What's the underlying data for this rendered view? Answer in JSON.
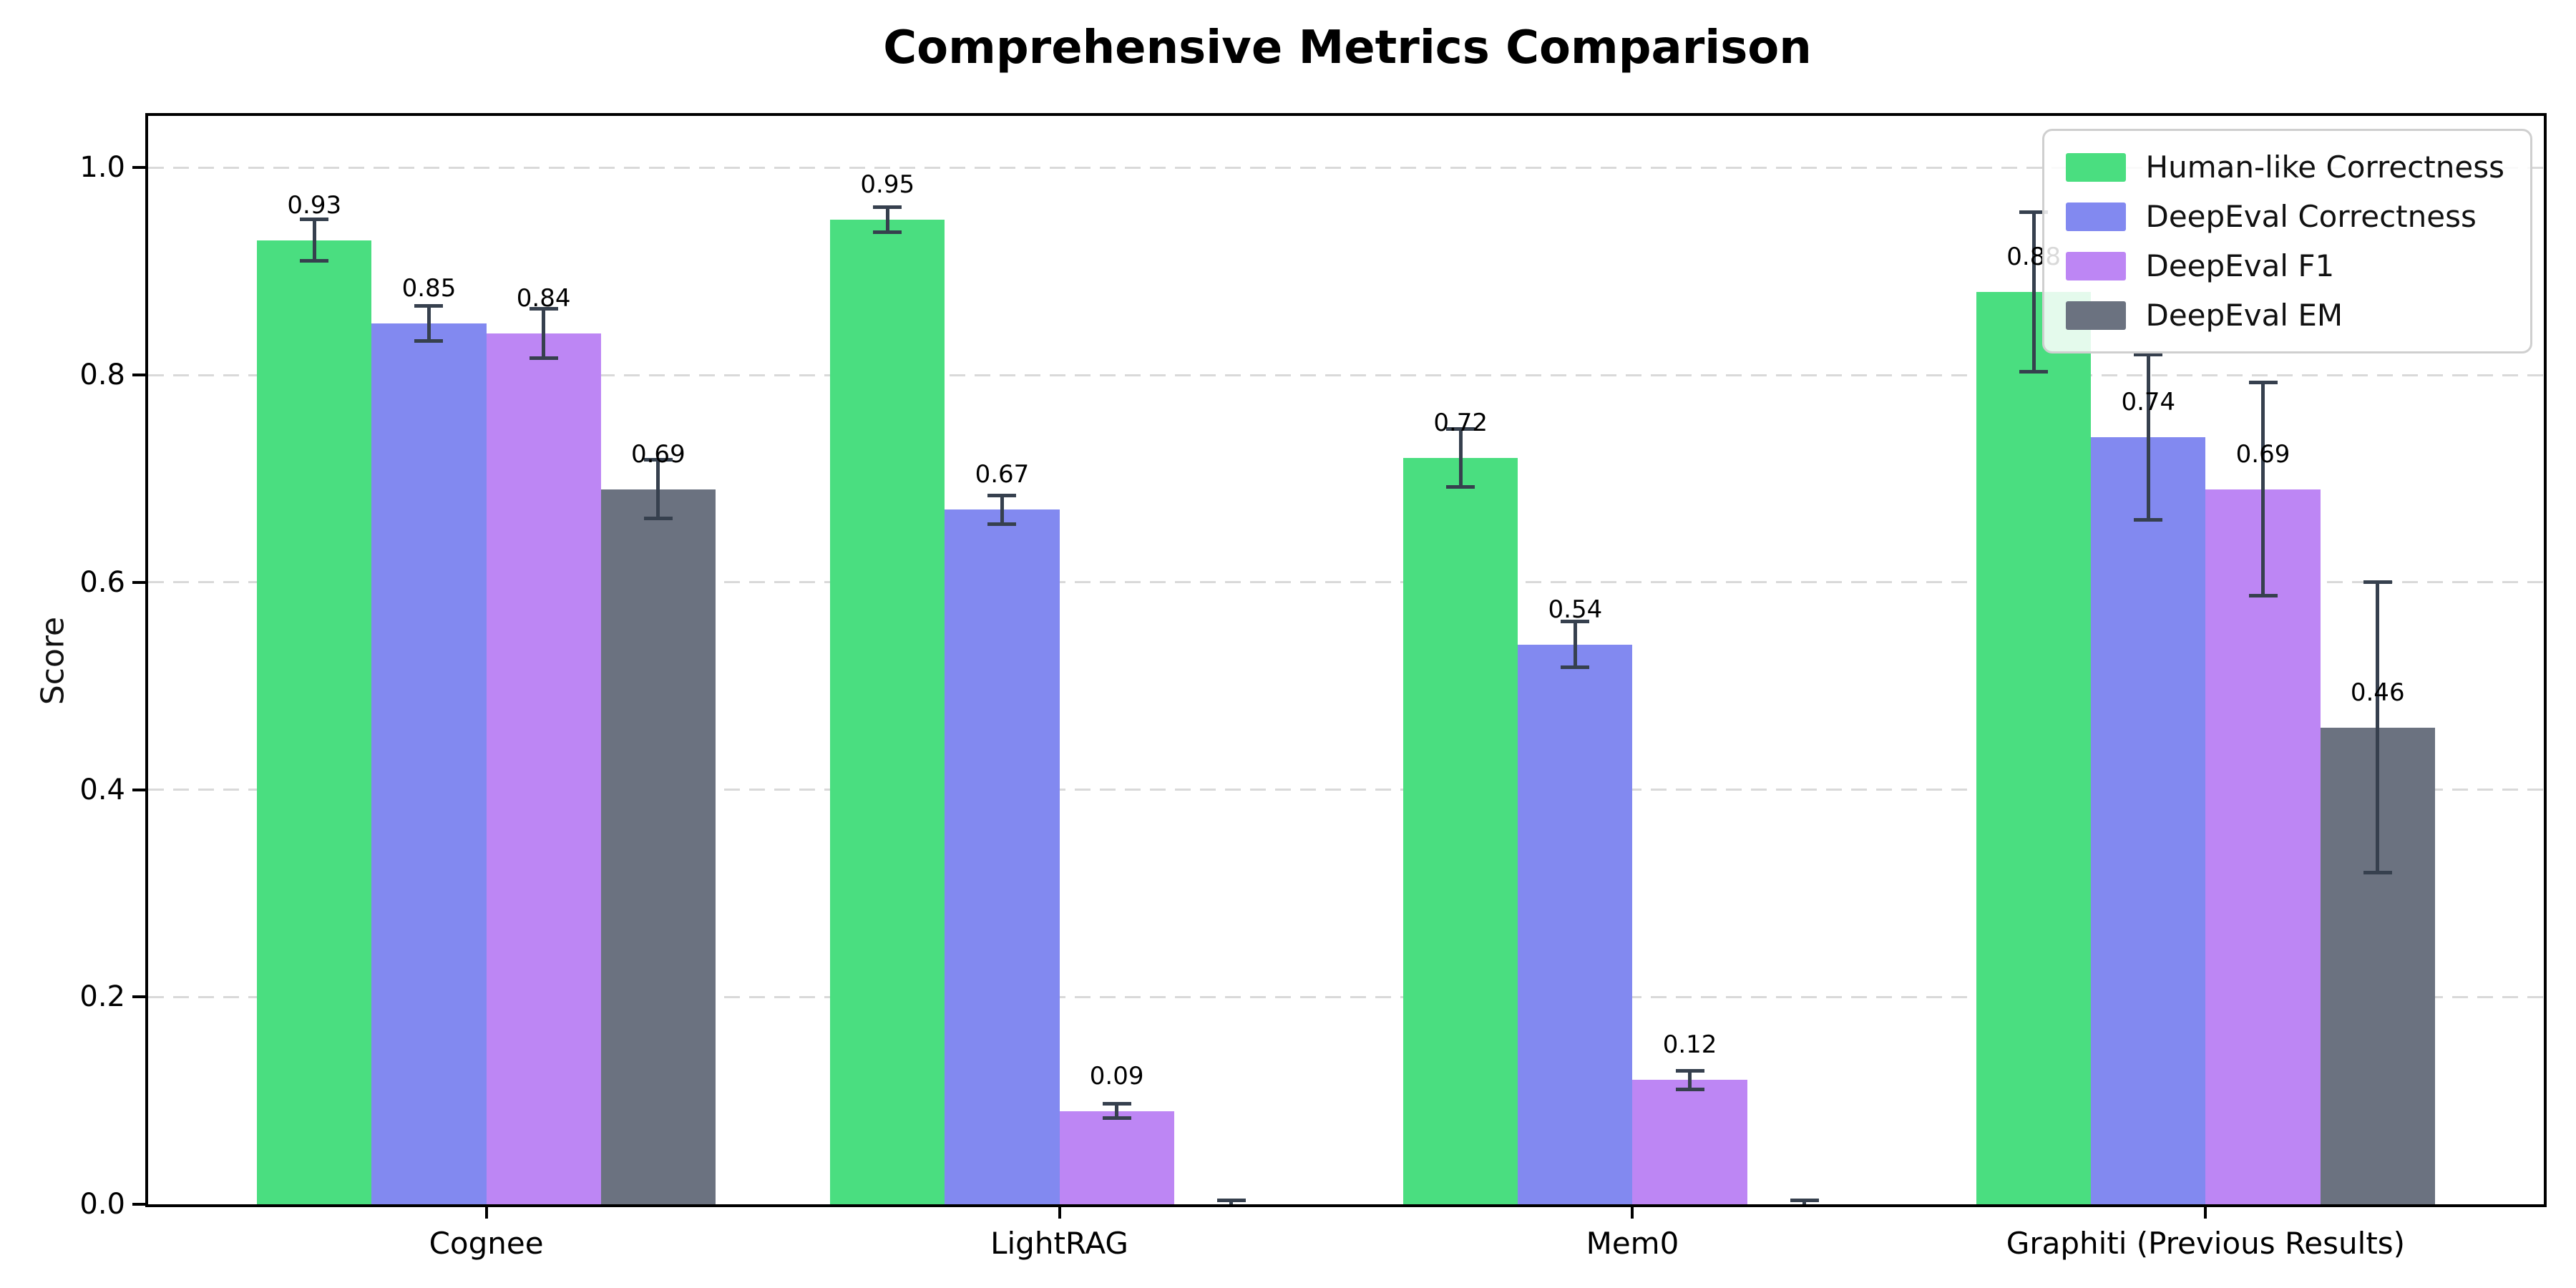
{
  "figure": {
    "background": "#ffffff",
    "title": "Comprehensive Metrics Comparison"
  },
  "chart_data": {
    "type": "bar",
    "title": "Comprehensive Metrics Comparison",
    "xlabel": "",
    "ylabel": "Score",
    "categories": [
      "Cognee",
      "LightRAG",
      "Mem0",
      "Graphiti (Previous Results)"
    ],
    "series": [
      {
        "name": "Human-like Correctness",
        "color": "#4ade80",
        "values": [
          0.93,
          0.95,
          0.72,
          0.88
        ],
        "errors": [
          0.02,
          0.012,
          0.028,
          0.077
        ]
      },
      {
        "name": "DeepEval Correctness",
        "color": "#8289f0",
        "values": [
          0.85,
          0.67,
          0.54,
          0.74
        ],
        "errors": [
          0.017,
          0.014,
          0.022,
          0.08
        ]
      },
      {
        "name": "DeepEval F1",
        "color": "#bd86f4",
        "values": [
          0.84,
          0.09,
          0.12,
          0.69
        ],
        "errors": [
          0.024,
          0.007,
          0.009,
          0.103
        ]
      },
      {
        "name": "DeepEval EM",
        "color": "#6b7280",
        "values": [
          0.69,
          0.0,
          0.0,
          0.46
        ],
        "errors": [
          0.028,
          0.004,
          0.004,
          0.14
        ]
      }
    ],
    "bar_value_labels": [
      [
        "0.93",
        "0.95",
        "0.72",
        "0.88"
      ],
      [
        "0.85",
        "0.67",
        "0.54",
        "0.74"
      ],
      [
        "0.84",
        "0.09",
        "0.12",
        "0.69"
      ],
      [
        "0.69",
        "",
        "",
        "0.46"
      ]
    ],
    "yticks": [
      "0.0",
      "0.2",
      "0.4",
      "0.6",
      "0.8",
      "1.0"
    ],
    "ytick_values": [
      0.0,
      0.2,
      0.4,
      0.6,
      0.8,
      1.0
    ],
    "ylim": [
      0,
      1.05
    ],
    "grid": {
      "axis": "y",
      "style": "dashed",
      "color": "#d9d9d9"
    },
    "error_bar_color": "#36404e",
    "legend_position": "upper right"
  }
}
